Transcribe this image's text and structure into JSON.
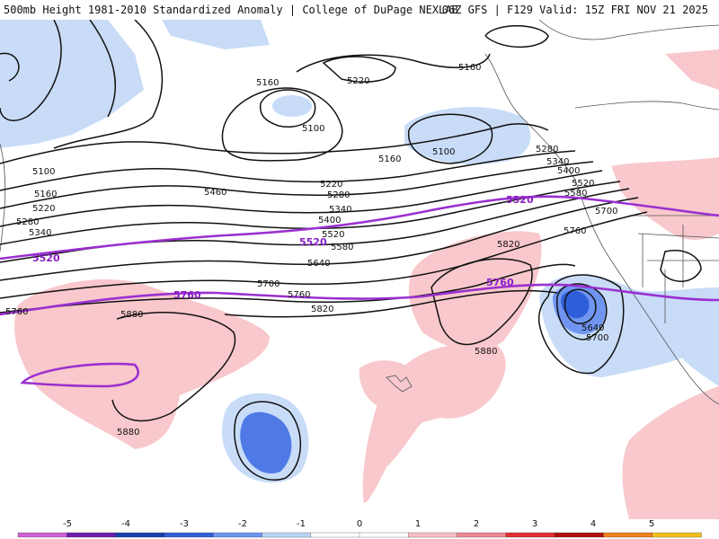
{
  "header": {
    "title_left": "500mb Height 1981-2010 Standardized Anomaly | College of DuPage NEXLAB",
    "title_right": "06Z GFS | F129 Valid: 15Z FRI NOV 21 2025"
  },
  "contours": {
    "black": [
      "5100",
      "5160",
      "5220",
      "5280",
      "5340",
      "5400",
      "5460",
      "5520",
      "5580",
      "5640",
      "5700",
      "5760",
      "5820",
      "5880"
    ],
    "purple": [
      "5520",
      "5760"
    ]
  },
  "colorbar": {
    "ticks": [
      "-5",
      "-4",
      "-3",
      "-2",
      "-1",
      "0",
      "1",
      "2",
      "3",
      "4",
      "5"
    ],
    "colors": [
      "#d060d8",
      "#6a1fb0",
      "#1a3fb0",
      "#2f5fd8",
      "#6f95f0",
      "#b8d4f8",
      "#ffffff",
      "#ffffff",
      "#f8c0c4",
      "#f08890",
      "#e03030",
      "#b01010",
      "#f08020",
      "#f0c020"
    ]
  }
}
